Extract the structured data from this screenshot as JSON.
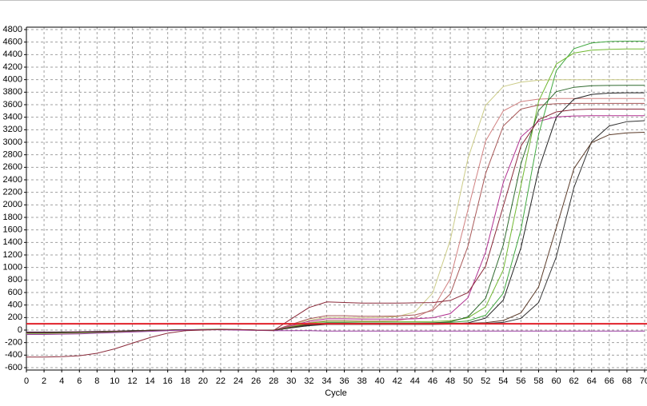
{
  "chart_data": {
    "type": "line",
    "xlabel": "Cycle",
    "x": [
      0,
      2,
      4,
      6,
      8,
      10,
      12,
      14,
      16,
      18,
      20,
      22,
      24,
      26,
      28,
      30,
      32,
      34,
      36,
      38,
      40,
      42,
      44,
      46,
      48,
      50,
      52,
      54,
      56,
      58,
      60,
      62,
      64,
      66,
      68,
      70
    ],
    "xlim": [
      0,
      70
    ],
    "xticks": [
      0,
      2,
      4,
      6,
      8,
      10,
      12,
      14,
      16,
      18,
      20,
      22,
      24,
      26,
      28,
      30,
      32,
      34,
      36,
      38,
      40,
      42,
      44,
      46,
      48,
      50,
      52,
      54,
      56,
      58,
      60,
      62,
      64,
      66,
      68,
      70
    ],
    "ylim": [
      -600,
      4800
    ],
    "yticks": [
      -600,
      -400,
      -200,
      0,
      200,
      400,
      600,
      800,
      1000,
      1200,
      1400,
      1600,
      1800,
      2000,
      2200,
      2400,
      2600,
      2800,
      3000,
      3200,
      3400,
      3600,
      3800,
      4000,
      4200,
      4400,
      4600,
      4800
    ],
    "grid": true,
    "threshold": 100,
    "threshold_color": "#e0202a",
    "series": [
      {
        "color": "#cccc88",
        "values": [
          -60,
          -60,
          -55,
          -50,
          -40,
          -30,
          -20,
          -10,
          0,
          5,
          10,
          15,
          10,
          0,
          -10,
          80,
          160,
          200,
          200,
          195,
          200,
          215,
          290,
          590,
          1440,
          2740,
          3590,
          3890,
          3960,
          3990,
          4000,
          4000,
          4000,
          4000,
          4000,
          4000
        ]
      },
      {
        "color": "#d08080",
        "values": [
          -50,
          -50,
          -45,
          -40,
          -30,
          -25,
          -15,
          -5,
          0,
          5,
          10,
          12,
          8,
          0,
          -5,
          60,
          120,
          150,
          150,
          145,
          145,
          155,
          195,
          335,
          820,
          1920,
          3020,
          3500,
          3650,
          3690,
          3700,
          3700,
          3700,
          3700,
          3700,
          3700
        ]
      },
      {
        "color": "#a85858",
        "values": [
          -40,
          -40,
          -38,
          -35,
          -30,
          -20,
          -15,
          -5,
          0,
          5,
          8,
          10,
          8,
          0,
          -5,
          90,
          180,
          230,
          230,
          220,
          220,
          225,
          243,
          312,
          577,
          1340,
          2500,
          3260,
          3530,
          3595,
          3615,
          3620,
          3620,
          3620,
          3620,
          3620
        ]
      },
      {
        "color": "#b03090",
        "values": [
          -30,
          -30,
          -30,
          -25,
          -20,
          -15,
          -10,
          -5,
          0,
          3,
          6,
          8,
          5,
          0,
          -5,
          70,
          140,
          180,
          180,
          175,
          175,
          175,
          180,
          197,
          263,
          516,
          1245,
          2355,
          3085,
          3335,
          3405,
          3420,
          3425,
          3425,
          3425,
          3425
        ]
      },
      {
        "color": "#40a840",
        "values": [
          -50,
          -50,
          -45,
          -40,
          -35,
          -25,
          -15,
          -10,
          0,
          5,
          10,
          12,
          8,
          0,
          -5,
          50,
          100,
          120,
          120,
          115,
          115,
          115,
          115,
          117,
          122,
          145,
          237,
          588,
          1605,
          3125,
          4145,
          4495,
          4585,
          4610,
          4615,
          4615
        ]
      },
      {
        "color": "#70b830",
        "values": [
          -45,
          -45,
          -40,
          -35,
          -30,
          -25,
          -15,
          -5,
          0,
          5,
          8,
          10,
          8,
          0,
          -5,
          55,
          110,
          140,
          140,
          135,
          135,
          135,
          135,
          137,
          148,
          196,
          370,
          961,
          2310,
          3655,
          4250,
          4425,
          4472,
          4485,
          4490,
          4490
        ]
      },
      {
        "color": "#2f6a2f",
        "values": [
          -40,
          -40,
          -40,
          -35,
          -30,
          -20,
          -15,
          -5,
          0,
          3,
          6,
          8,
          6,
          0,
          -5,
          45,
          90,
          110,
          110,
          108,
          108,
          108,
          108,
          114,
          133,
          211,
          508,
          1358,
          2658,
          3508,
          3808,
          3878,
          3903,
          3908,
          3910,
          3910
        ]
      },
      {
        "color": "#222222",
        "values": [
          -35,
          -35,
          -30,
          -30,
          -25,
          -20,
          -10,
          -5,
          0,
          3,
          6,
          8,
          5,
          0,
          -5,
          35,
          70,
          90,
          90,
          90,
          90,
          90,
          90,
          90,
          96,
          115,
          190,
          479,
          1315,
          2565,
          3400,
          3690,
          3765,
          3785,
          3790,
          3790
        ]
      },
      {
        "color": "#333333",
        "values": [
          -40,
          -40,
          -35,
          -30,
          -25,
          -20,
          -10,
          -5,
          0,
          3,
          6,
          8,
          5,
          0,
          -5,
          40,
          80,
          100,
          100,
          100,
          100,
          100,
          100,
          100,
          100,
          100,
          105,
          122,
          188,
          441,
          1170,
          2280,
          3010,
          3260,
          3330,
          3345
        ]
      },
      {
        "color": "#5a3a28",
        "values": [
          -45,
          -45,
          -40,
          -35,
          -30,
          -20,
          -15,
          -5,
          0,
          3,
          6,
          8,
          5,
          0,
          -5,
          45,
          90,
          110,
          110,
          110,
          110,
          110,
          110,
          110,
          110,
          110,
          119,
          153,
          275,
          690,
          1635,
          2580,
          2995,
          3120,
          3150,
          3160
        ]
      },
      {
        "color": "#9a3aa0",
        "values": [
          -70,
          -70,
          -65,
          -60,
          -50,
          -40,
          -30,
          -20,
          -10,
          0,
          5,
          5,
          0,
          -5,
          -10,
          -10,
          -10,
          -15,
          -15,
          -15,
          -15,
          -15,
          -15,
          -15,
          -15,
          -15,
          -15,
          -15,
          -15,
          -15,
          -15,
          -15,
          -15,
          -15,
          -15,
          -15
        ]
      },
      {
        "color": "#8a2a3a",
        "values": [
          -430,
          -430,
          -425,
          -410,
          -370,
          -300,
          -210,
          -120,
          -50,
          -10,
          0,
          10,
          10,
          0,
          -5,
          180,
          360,
          450,
          440,
          430,
          430,
          430,
          435,
          439,
          473,
          597,
          1020,
          1980,
          2940,
          3360,
          3485,
          3520,
          3530,
          3530,
          3530,
          3530
        ]
      }
    ]
  }
}
